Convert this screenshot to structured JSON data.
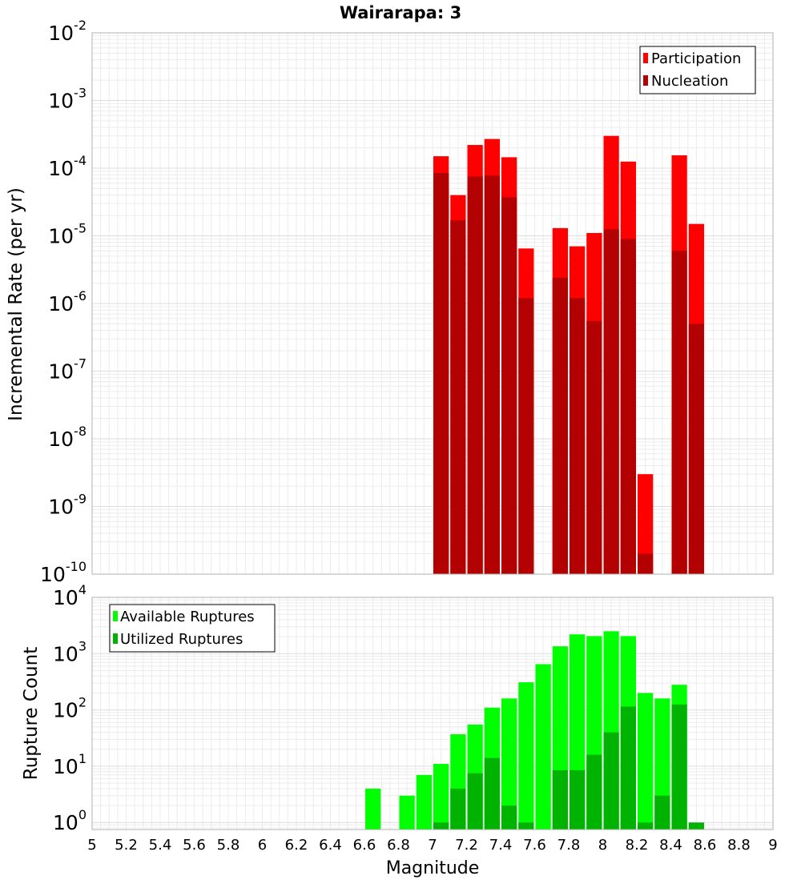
{
  "chart_data": [
    {
      "type": "bar",
      "title": "Wairarapa: 3",
      "xlabel": "",
      "ylabel": "Incremental Rate (per yr)",
      "y_scale": "log",
      "xlim": [
        5,
        9
      ],
      "ylim": [
        1e-10,
        0.01
      ],
      "y_ticks": [
        {
          "base": "10",
          "exp": "-10"
        },
        {
          "base": "10",
          "exp": "-9"
        },
        {
          "base": "10",
          "exp": "-8"
        },
        {
          "base": "10",
          "exp": "-7"
        },
        {
          "base": "10",
          "exp": "-6"
        },
        {
          "base": "10",
          "exp": "-5"
        },
        {
          "base": "10",
          "exp": "-4"
        },
        {
          "base": "10",
          "exp": "-3"
        },
        {
          "base": "10",
          "exp": "-2"
        }
      ],
      "legend_position": "top-right",
      "grid": true,
      "bin_width": 0.1,
      "series": [
        {
          "name": "Participation",
          "color": "#ff0000",
          "x": [
            7.05,
            7.15,
            7.25,
            7.35,
            7.45,
            7.55,
            7.75,
            7.85,
            7.95,
            8.05,
            8.15,
            8.25,
            8.45,
            8.55
          ],
          "values": [
            0.00015,
            4e-05,
            0.00022,
            0.00027,
            0.000145,
            6.5e-06,
            1.3e-05,
            7e-06,
            1.1e-05,
            0.0003,
            0.000125,
            3e-09,
            0.000155,
            1.5e-05
          ]
        },
        {
          "name": "Nucleation",
          "color": "#b30000",
          "x": [
            7.05,
            7.15,
            7.25,
            7.35,
            7.45,
            7.55,
            7.75,
            7.85,
            7.95,
            8.05,
            8.15,
            8.25,
            8.45,
            8.55
          ],
          "values": [
            8.5e-05,
            1.7e-05,
            7.5e-05,
            7.8e-05,
            3.7e-05,
            1.2e-06,
            2.4e-06,
            1.2e-06,
            5.5e-07,
            1.25e-05,
            9e-06,
            2e-10,
            6e-06,
            5e-07
          ]
        }
      ]
    },
    {
      "type": "bar",
      "title": "",
      "xlabel": "Magnitude",
      "ylabel": "Rupture Count",
      "y_scale": "log",
      "xlim": [
        5,
        9
      ],
      "ylim": [
        0.75,
        10000
      ],
      "x_ticks": [
        "5",
        "5.2",
        "5.4",
        "5.6",
        "5.8",
        "6",
        "6.2",
        "6.4",
        "6.6",
        "6.8",
        "7",
        "7.2",
        "7.4",
        "7.6",
        "7.8",
        "8",
        "8.2",
        "8.4",
        "8.6",
        "8.8",
        "9"
      ],
      "y_ticks": [
        {
          "base": "10",
          "exp": "0"
        },
        {
          "base": "10",
          "exp": "1"
        },
        {
          "base": "10",
          "exp": "2"
        },
        {
          "base": "10",
          "exp": "3"
        },
        {
          "base": "10",
          "exp": "4"
        }
      ],
      "legend_position": "top-left",
      "grid": true,
      "bin_width": 0.1,
      "series": [
        {
          "name": "Available Ruptures",
          "color": "#00ff00",
          "x": [
            6.65,
            6.85,
            6.95,
            7.05,
            7.15,
            7.25,
            7.35,
            7.45,
            7.55,
            7.65,
            7.75,
            7.85,
            7.95,
            8.05,
            8.15,
            8.25,
            8.35,
            8.45
          ],
          "values": [
            4,
            3,
            7,
            11,
            37,
            55,
            110,
            160,
            310,
            650,
            1350,
            2200,
            2050,
            2500,
            2050,
            200,
            160,
            280
          ]
        },
        {
          "name": "Utilized Ruptures",
          "color": "#00b300",
          "x": [
            7.05,
            7.15,
            7.25,
            7.35,
            7.45,
            7.55,
            7.75,
            7.85,
            7.95,
            8.05,
            8.15,
            8.25,
            8.35,
            8.45,
            8.55
          ],
          "values": [
            1,
            4,
            7.5,
            14,
            2,
            1,
            8.5,
            8.5,
            16,
            40,
            115,
            1,
            3,
            125,
            1
          ]
        }
      ]
    }
  ]
}
